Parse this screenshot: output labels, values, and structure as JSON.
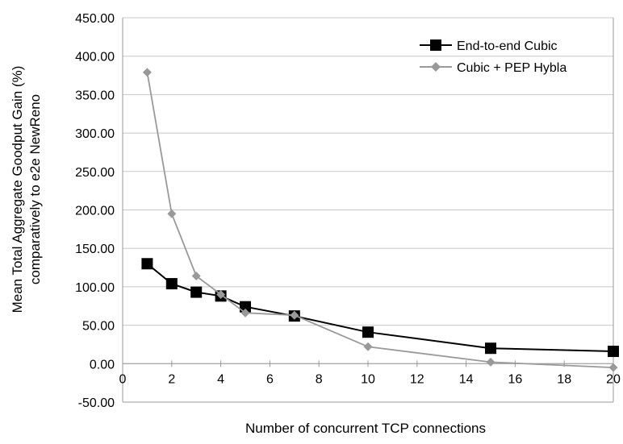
{
  "chart_data": {
    "type": "line",
    "title": "",
    "xlabel": "Number of concurrent TCP connections",
    "ylabel": [
      "Mean Total Aggregate Goodput Gain (%)",
      "comparatively to e2e NewReno"
    ],
    "xlim": [
      0,
      20
    ],
    "ylim": [
      -50,
      450
    ],
    "x_ticks": [
      "0",
      "2",
      "4",
      "6",
      "8",
      "10",
      "12",
      "14",
      "16",
      "18",
      "20"
    ],
    "y_ticks": [
      "-50.00",
      "0.00",
      "50.00",
      "100.00",
      "150.00",
      "200.00",
      "250.00",
      "300.00",
      "350.00",
      "400.00",
      "450.00"
    ],
    "grid": "horizontal",
    "legend_position": "top-right",
    "series": [
      {
        "name": "End-to-end Cubic",
        "color": "#000000",
        "marker": "square",
        "x": [
          1,
          2,
          3,
          4,
          5,
          7,
          10,
          15,
          20
        ],
        "values": [
          130,
          104,
          93,
          88,
          74,
          62,
          41,
          20,
          16
        ]
      },
      {
        "name": "Cubic + PEP Hybla",
        "color": "#999999",
        "marker": "diamond",
        "x": [
          1,
          2,
          3,
          4,
          5,
          7,
          10,
          15,
          20
        ],
        "values": [
          379,
          195,
          114,
          90,
          66,
          63,
          22,
          2,
          -5
        ]
      }
    ]
  }
}
